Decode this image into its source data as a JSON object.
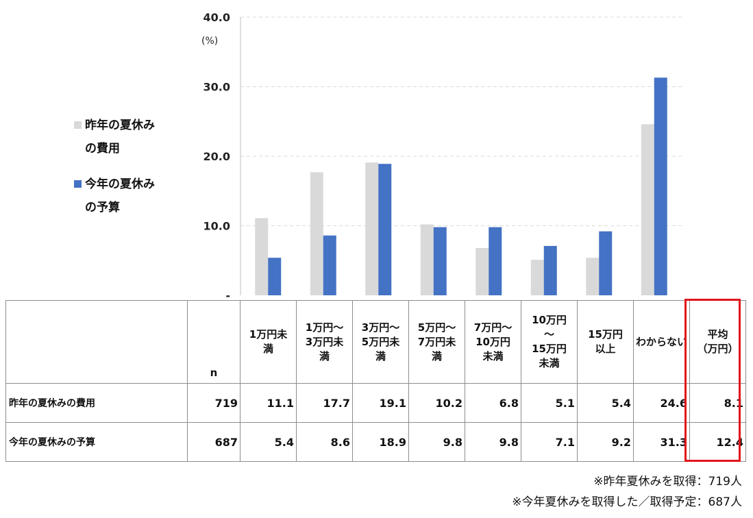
{
  "chart_data": {
    "type": "bar",
    "y_unit": "(%)",
    "ylim": [
      0,
      40
    ],
    "y_ticks": [
      "-",
      "10.0",
      "20.0",
      "30.0",
      "40.0"
    ],
    "grid": true,
    "legend_position": "left",
    "categories": [
      "1万円未満",
      "1万円～3万円未満",
      "3万円～5万円未満",
      "5万円～7万円未満",
      "7万円～10万円未満",
      "10万円～15万円未満",
      "15万円以上",
      "わからない"
    ],
    "series": [
      {
        "name": "昨年の夏休みの費用",
        "color": "#d9d9d9",
        "values": [
          11.1,
          17.7,
          19.1,
          10.2,
          6.8,
          5.1,
          5.4,
          24.6
        ]
      },
      {
        "name": "今年の夏休みの予算",
        "color": "#4472c4",
        "values": [
          5.4,
          8.6,
          18.9,
          9.8,
          9.8,
          7.1,
          9.2,
          31.3
        ]
      }
    ]
  },
  "legend": {
    "item1_line1": "昨年の夏休み",
    "item1_line2": "の費用",
    "item2_line1": "今年の夏休み",
    "item2_line2": "の予算"
  },
  "table": {
    "headers": [
      "",
      "n",
      "1万円未\n満",
      "1万円～\n3万円未\n満",
      "3万円～\n5万円未\n満",
      "5万円～\n7万円未\n満",
      "7万円～\n10万円\n未満",
      "10万円\n～\n15万円\n未満",
      "15万円\n以上",
      "わからない",
      "平均\n（万円）"
    ],
    "rows": [
      {
        "label": "昨年の夏休みの費用",
        "n": "719",
        "values": [
          "11.1",
          "17.7",
          "19.1",
          "10.2",
          "6.8",
          "5.1",
          "5.4",
          "24.6"
        ],
        "avg": "8.1"
      },
      {
        "label": "今年の夏休みの予算",
        "n": "687",
        "values": [
          "5.4",
          "8.6",
          "18.9",
          "9.8",
          "9.8",
          "7.1",
          "9.2",
          "31.3"
        ],
        "avg": "12.4"
      }
    ]
  },
  "notes": [
    "※昨年夏休みを取得：719人",
    "※今年夏休みを取得した／取得予定：687人"
  ]
}
